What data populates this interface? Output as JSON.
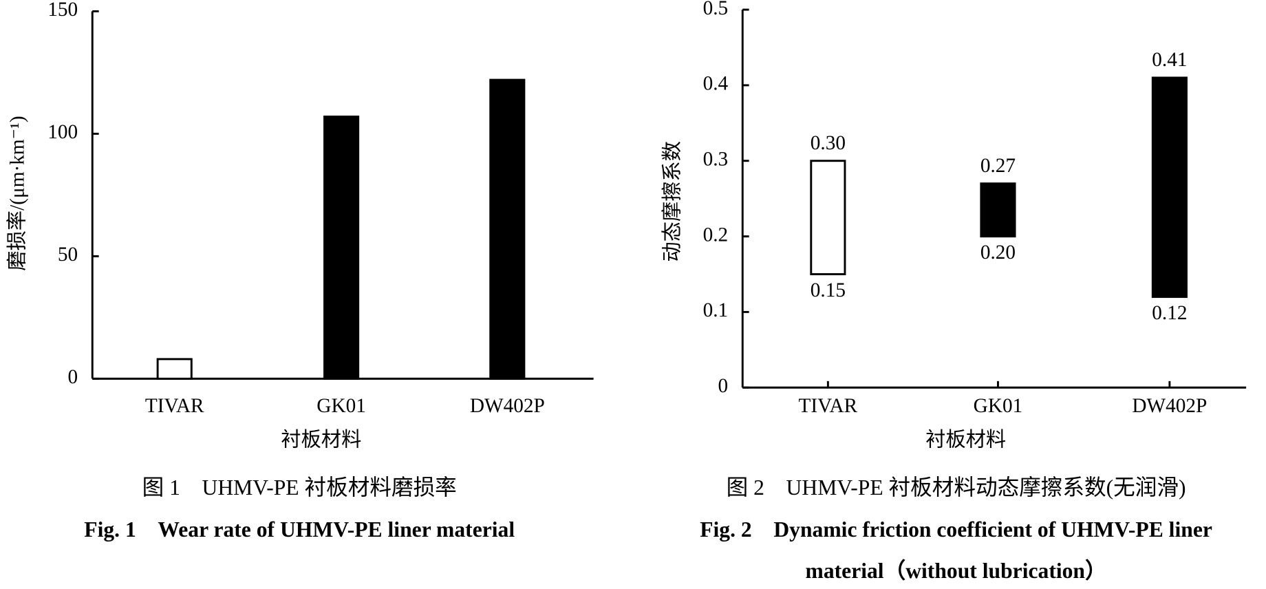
{
  "chart_data": [
    {
      "type": "bar",
      "ylabel": "磨损率/(μm·km⁻¹)",
      "xlabel": "衬板材料",
      "caption_cn": "图 1　UHMV-PE 衬板材料磨损率",
      "caption_en": [
        "Fig. 1　Wear rate of UHMV-PE liner material"
      ],
      "categories": [
        "TIVAR",
        "GK01",
        "DW402P"
      ],
      "values": [
        8,
        107,
        122
      ],
      "colors": [
        "#ffffff",
        "#000000",
        "#000000"
      ],
      "ylim": [
        0,
        150
      ],
      "yticks": [
        0,
        50,
        100,
        150
      ]
    },
    {
      "type": "range-bar",
      "ylabel": "动态摩擦系数",
      "xlabel": "衬板材料",
      "caption_cn": "图 2　UHMV-PE 衬板材料动态摩擦系数(无润滑)",
      "caption_en": [
        "Fig. 2　Dynamic friction coefficient of UHMV-PE liner",
        "material（without lubrication）"
      ],
      "categories": [
        "TIVAR",
        "GK01",
        "DW402P"
      ],
      "lows": [
        0.15,
        0.2,
        0.12
      ],
      "lows_value_labels": [
        "0.15",
        "0.20",
        "0.12"
      ],
      "highs": [
        0.3,
        0.27,
        0.41
      ],
      "highs_value_labels": [
        "0.30",
        "0.27",
        "0.41"
      ],
      "colors": [
        "#ffffff",
        "#000000",
        "#000000"
      ],
      "ylim": [
        0,
        0.5
      ],
      "yticks": [
        0,
        0.1,
        0.2,
        0.3,
        0.4,
        0.5
      ]
    }
  ]
}
